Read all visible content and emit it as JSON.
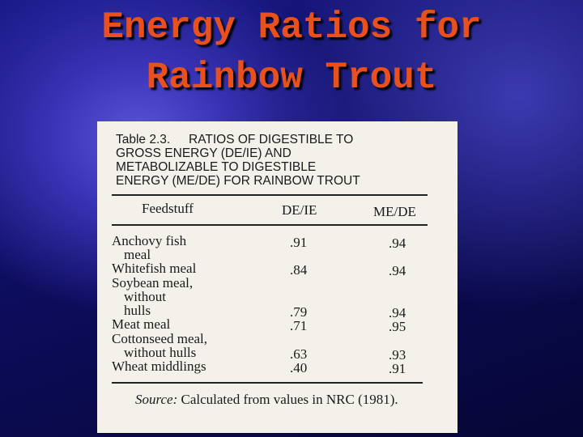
{
  "header": {
    "title_lines": [
      "Energy Ratios for",
      "Rainbow Trout"
    ]
  },
  "table": {
    "label": "Table 2.3.",
    "caption_lines": [
      "RATIOS OF DIGESTIBLE TO",
      "GROSS ENERGY (DE/IE) AND",
      "METABOLIZABLE TO DIGESTIBLE",
      "ENERGY (ME/DE) FOR RAINBOW TROUT"
    ],
    "columns": [
      "Feedstuff",
      "DE/IE",
      "ME/DE"
    ],
    "rows": [
      {
        "feedstuff": [
          "Anchovy fish",
          "meal"
        ],
        "de_ie": ".91",
        "me_de": ".94"
      },
      {
        "feedstuff": [
          "Whitefish meal"
        ],
        "de_ie": ".84",
        "me_de": ".94"
      },
      {
        "feedstuff": [
          "Soybean meal,",
          "without",
          "hulls"
        ],
        "de_ie": ".79",
        "me_de": ".94"
      },
      {
        "feedstuff": [
          "Meat meal"
        ],
        "de_ie": ".71",
        "me_de": ".95"
      },
      {
        "feedstuff": [
          "Cottonseed meal,",
          "without hulls"
        ],
        "de_ie": ".63",
        "me_de": ".93"
      },
      {
        "feedstuff": [
          "Wheat middlings"
        ],
        "de_ie": ".40",
        "me_de": ".91"
      }
    ],
    "source_label": "Source:",
    "source_text": "Calculated from values in NRC (1981)."
  }
}
